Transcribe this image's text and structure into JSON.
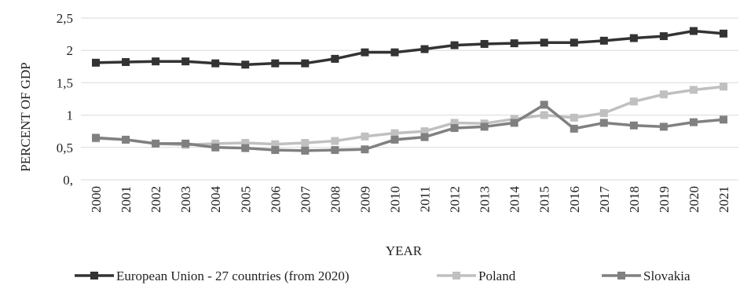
{
  "chart_data": {
    "type": "line",
    "title": "",
    "xlabel": "YEAR",
    "ylabel": "PERCENT OF GDP",
    "ylim": [
      0,
      2.5
    ],
    "yticks": [
      "0,",
      "0,5",
      "1",
      "1,5",
      "2",
      "2,5"
    ],
    "ytick_values": [
      0,
      0.5,
      1,
      1.5,
      2,
      2.5
    ],
    "grid": "horizontal",
    "legend_position": "bottom",
    "categories": [
      "2000",
      "2001",
      "2002",
      "2003",
      "2004",
      "2005",
      "2006",
      "2007",
      "2008",
      "2009",
      "2010",
      "2011",
      "2012",
      "2013",
      "2014",
      "2015",
      "2016",
      "2017",
      "2018",
      "2019",
      "2020",
      "2021"
    ],
    "series": [
      {
        "name": "European Union - 27 countries (from 2020)",
        "color": "#333333",
        "values": [
          1.81,
          1.82,
          1.83,
          1.83,
          1.8,
          1.78,
          1.8,
          1.8,
          1.87,
          1.97,
          1.97,
          2.02,
          2.08,
          2.1,
          2.11,
          2.12,
          2.12,
          2.15,
          2.19,
          2.22,
          2.3,
          2.26
        ]
      },
      {
        "name": "Poland",
        "color": "#c0c0c0",
        "values": [
          0.64,
          0.62,
          0.56,
          0.54,
          0.56,
          0.57,
          0.55,
          0.57,
          0.6,
          0.67,
          0.72,
          0.75,
          0.88,
          0.87,
          0.94,
          1.0,
          0.96,
          1.03,
          1.21,
          1.32,
          1.39,
          1.44
        ]
      },
      {
        "name": "Slovakia",
        "color": "#808080",
        "values": [
          0.65,
          0.62,
          0.56,
          0.56,
          0.5,
          0.49,
          0.46,
          0.45,
          0.46,
          0.47,
          0.62,
          0.66,
          0.8,
          0.82,
          0.88,
          1.16,
          0.79,
          0.88,
          0.84,
          0.82,
          0.89,
          0.93
        ]
      }
    ]
  }
}
